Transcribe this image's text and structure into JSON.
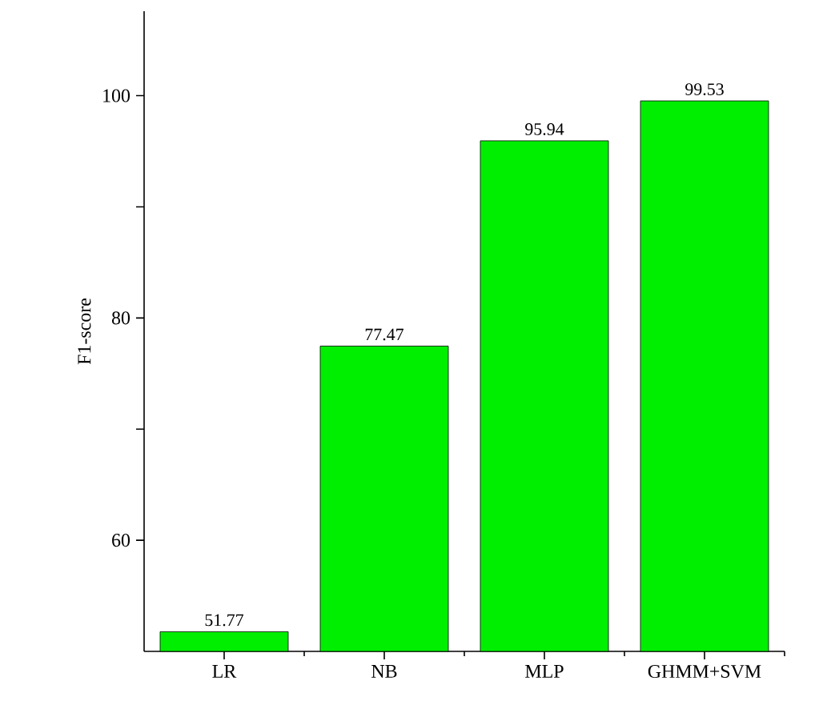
{
  "chart_data": {
    "type": "bar",
    "ylabel": "F1-score",
    "categories": [
      "LR",
      "NB",
      "MLP",
      "GHMM+SVM"
    ],
    "values": [
      51.77,
      77.47,
      95.94,
      99.53
    ],
    "color": "#00ee00",
    "ylim": [
      50,
      107.6
    ],
    "yticks": [
      60,
      {
        "value": 70,
        "label": null
      },
      80,
      {
        "value": 90,
        "label": null
      },
      100
    ],
    "data_labels": true
  }
}
